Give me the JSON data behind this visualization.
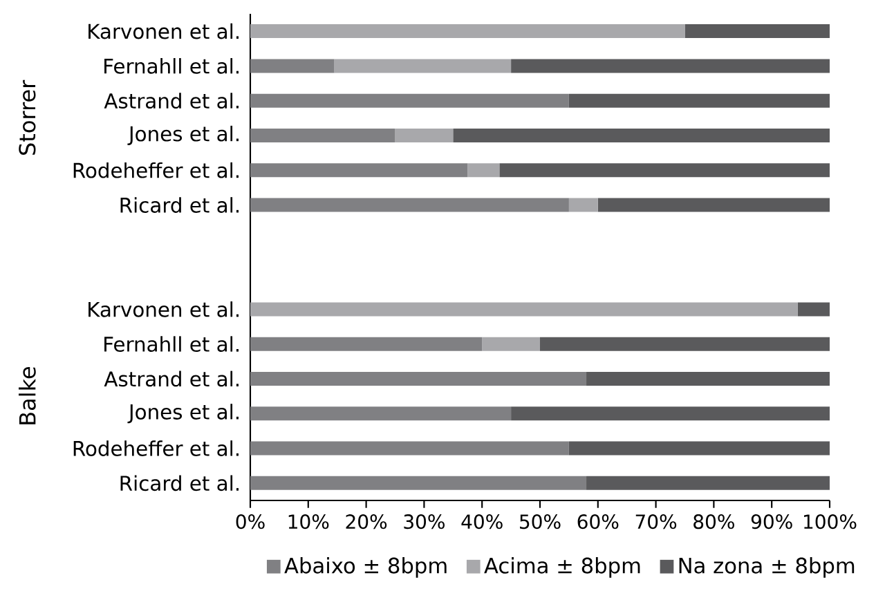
{
  "chart_data": {
    "type": "bar",
    "orientation": "horizontal",
    "stacked": true,
    "categories": [
      "Karvonen et al.",
      "Fernahll et al.",
      "Astrand et al.",
      "Jones et al.",
      "Rodeheffer et al.",
      "Ricard et al.",
      null,
      null,
      "Karvonen et al.",
      "Fernahll et al.",
      "Astrand et al.",
      "Jones et al.",
      "Rodeheffer et al.",
      "Ricard et al."
    ],
    "series": [
      {
        "name": "Abaixo ± 8bpm",
        "color": "#808083",
        "values": [
          0,
          14.5,
          55,
          25,
          37.5,
          55,
          null,
          null,
          0,
          40,
          58,
          45,
          55,
          58
        ]
      },
      {
        "name": "Acima ± 8bpm",
        "color": "#a8a8ab",
        "values": [
          75,
          30.5,
          0,
          10,
          5.5,
          5,
          null,
          null,
          94.5,
          10,
          0,
          0,
          0,
          0
        ]
      },
      {
        "name": "Na zona ± 8bpm",
        "color": "#5a5a5c",
        "values": [
          25,
          55,
          45,
          65,
          57,
          40,
          null,
          null,
          5.5,
          50,
          42,
          55,
          45,
          42
        ]
      }
    ],
    "xlim": [
      0,
      100
    ],
    "xticks": [
      {
        "value": 0,
        "label": "0%"
      },
      {
        "value": 10,
        "label": "10%"
      },
      {
        "value": 20,
        "label": "20%"
      },
      {
        "value": 30,
        "label": "30%"
      },
      {
        "value": 40,
        "label": "40%"
      },
      {
        "value": 50,
        "label": "50%"
      },
      {
        "value": 60,
        "label": "60%"
      },
      {
        "value": 70,
        "label": "70%"
      },
      {
        "value": 80,
        "label": "80%"
      },
      {
        "value": 90,
        "label": "90%"
      },
      {
        "value": 100,
        "label": "100%"
      }
    ],
    "annotations": [
      "Storrer",
      "Balke"
    ],
    "legend": "bottom"
  }
}
